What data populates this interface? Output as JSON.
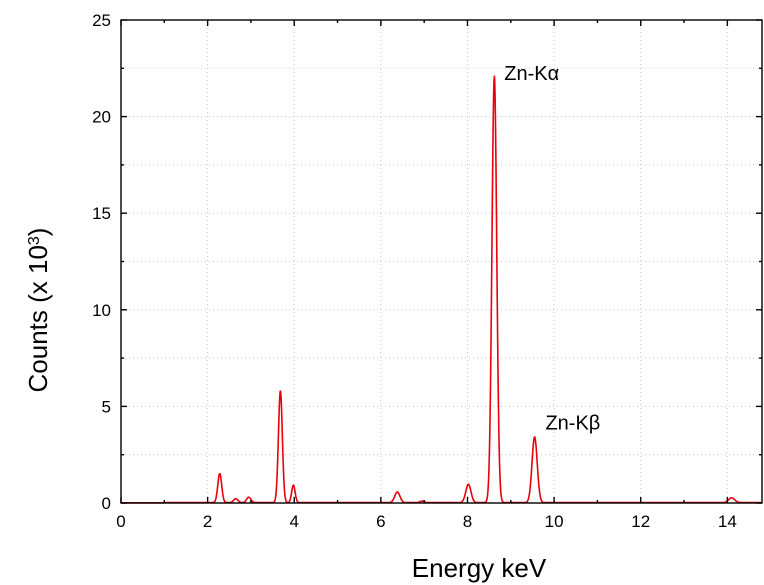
{
  "chart_data": {
    "type": "line",
    "title": "",
    "xlabel": "Energy keV",
    "ylabel_text": "Counts (x 10",
    "ylabel_exponent": "3",
    "ylabel_close": ")",
    "xlim": [
      0,
      14.8
    ],
    "ylim": [
      0,
      25
    ],
    "x_ticks": [
      0,
      2,
      4,
      6,
      8,
      10,
      12,
      14
    ],
    "x_tick_labels": [
      "0",
      "2",
      "4",
      "6",
      "8",
      "10",
      "12",
      "14"
    ],
    "y_ticks": [
      0,
      5,
      10,
      15,
      20,
      25
    ],
    "y_tick_labels": [
      "0",
      "5",
      "10",
      "15",
      "20",
      "25"
    ],
    "grid": true,
    "series_color": "#e8000b",
    "series": [
      {
        "peaks": [
          {
            "x": 2.28,
            "y": 1.5,
            "sigma": 0.045
          },
          {
            "x": 2.65,
            "y": 0.2,
            "sigma": 0.05
          },
          {
            "x": 2.95,
            "y": 0.28,
            "sigma": 0.05
          },
          {
            "x": 3.68,
            "y": 5.8,
            "sigma": 0.045
          },
          {
            "x": 3.98,
            "y": 0.9,
            "sigma": 0.04
          },
          {
            "x": 6.38,
            "y": 0.55,
            "sigma": 0.06
          },
          {
            "x": 6.95,
            "y": 0.08,
            "sigma": 0.05
          },
          {
            "x": 8.02,
            "y": 0.95,
            "sigma": 0.06
          },
          {
            "x": 8.62,
            "y": 22.1,
            "sigma": 0.055
          },
          {
            "x": 9.55,
            "y": 3.4,
            "sigma": 0.06
          },
          {
            "x": 14.1,
            "y": 0.25,
            "sigma": 0.07
          }
        ]
      }
    ],
    "annotations": [
      {
        "label": "Zn-Kα",
        "x": 8.85,
        "y": 21.9
      },
      {
        "label": "Zn-Kβ",
        "x": 9.8,
        "y": 3.8
      }
    ]
  }
}
